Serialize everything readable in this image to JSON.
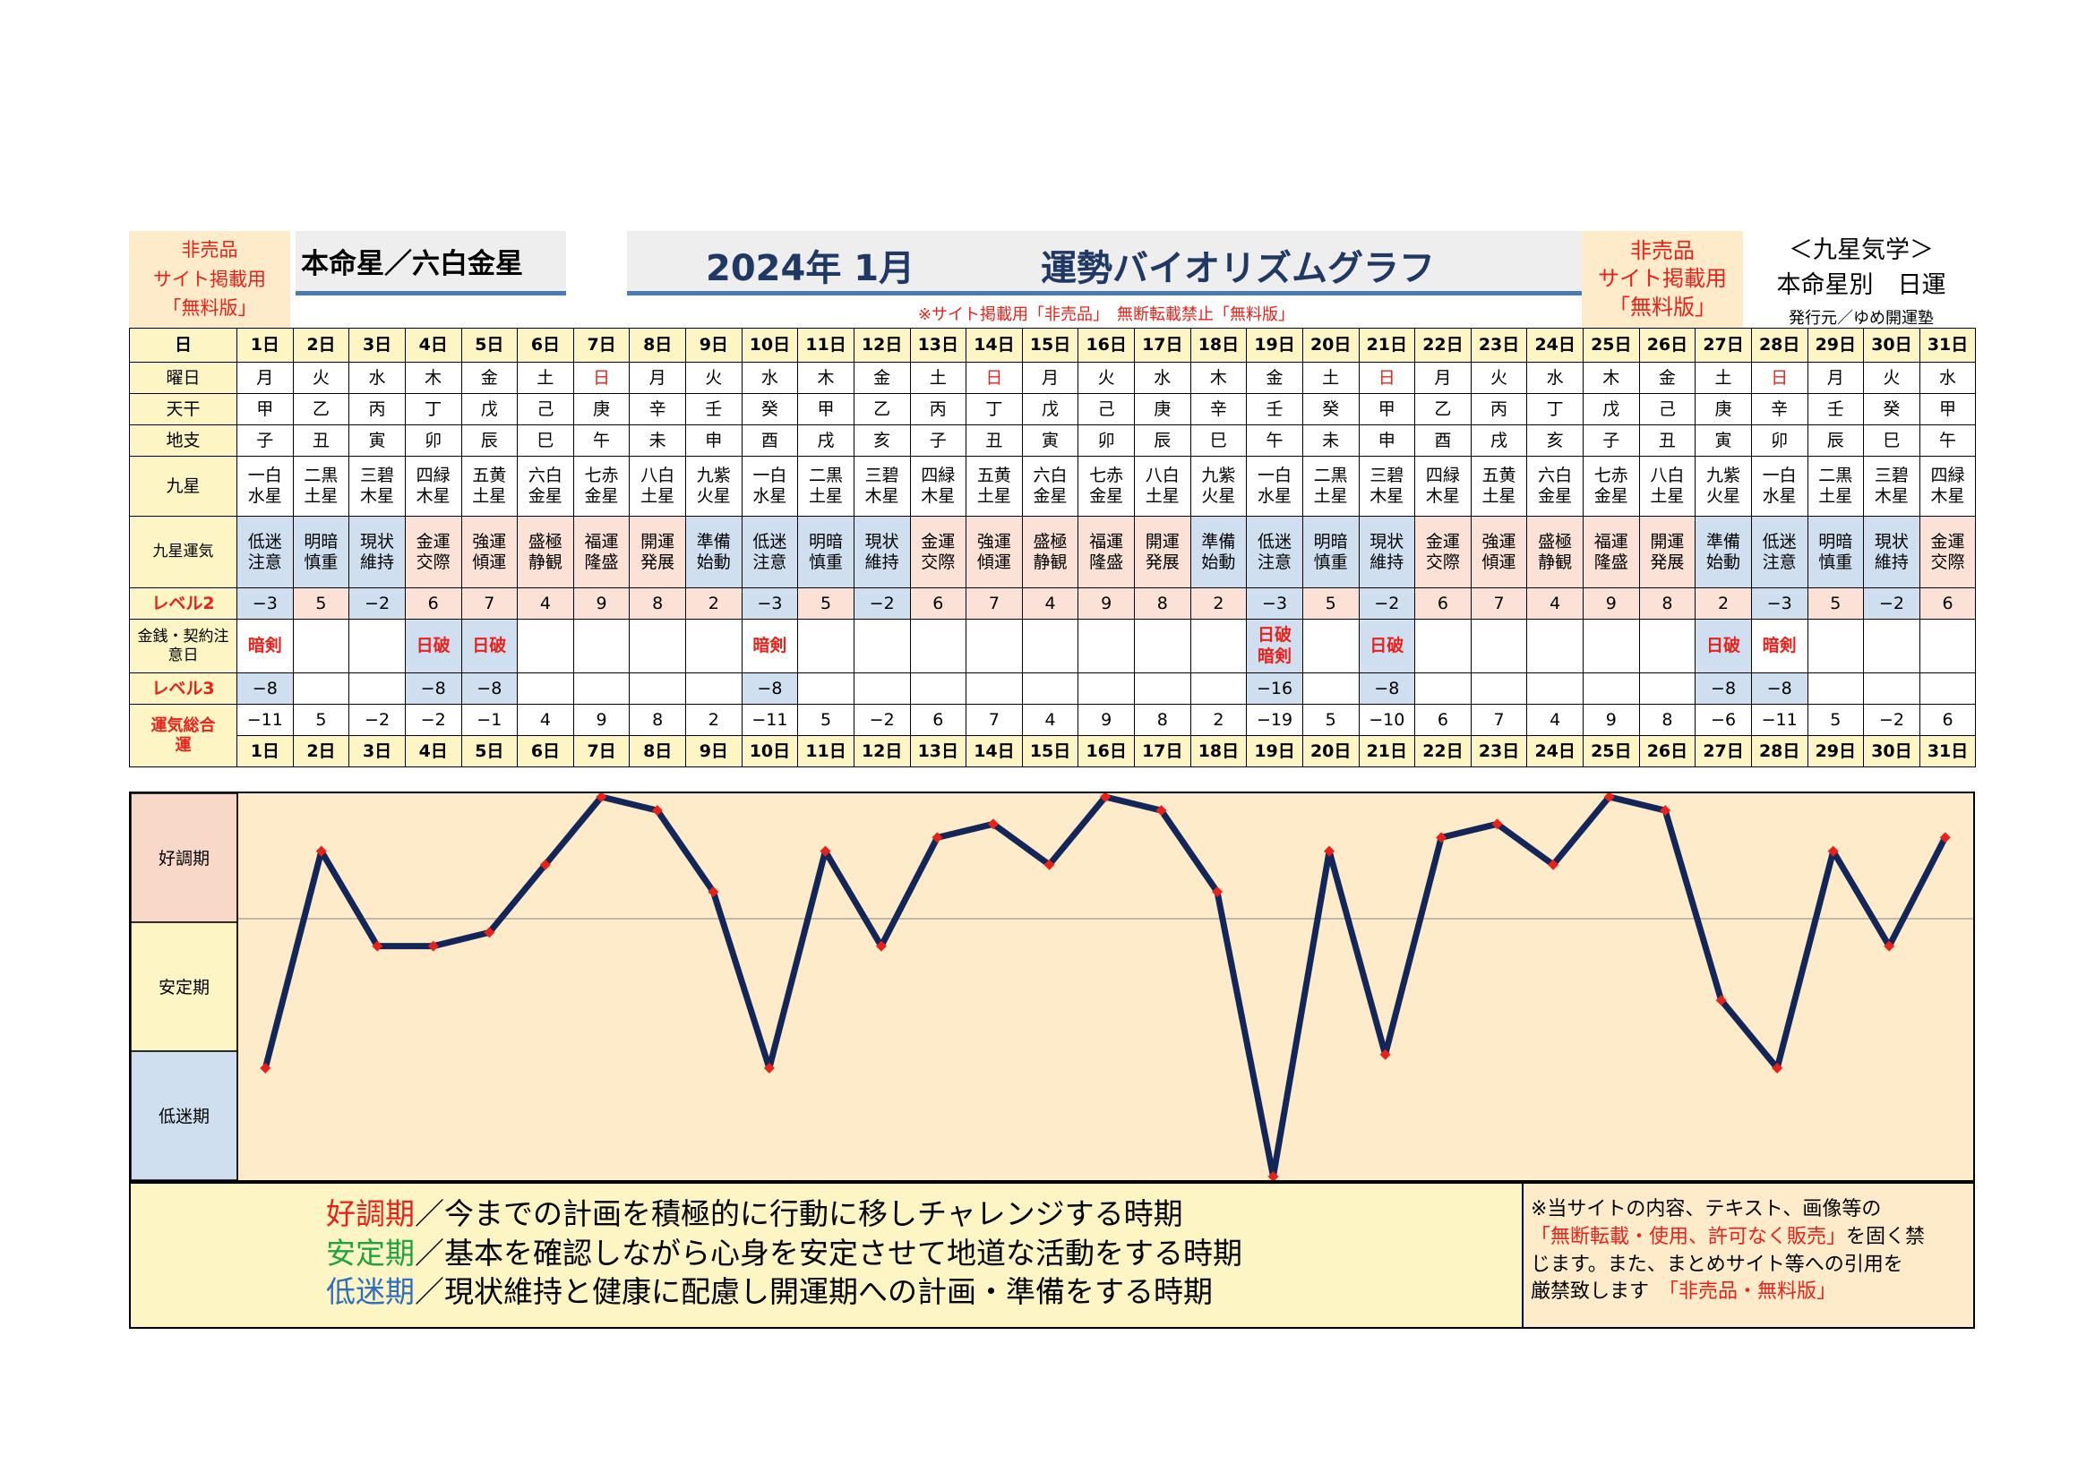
{
  "header": {
    "left_notice": [
      "非売品",
      "サイト掲載用",
      "「無料版」"
    ],
    "honmeisei": "本命星／六白金星",
    "year_month": "2024年 1月",
    "title": "運勢バイオリズムグラフ",
    "right_notice": [
      "非売品",
      "サイト掲載用",
      "「無料版」"
    ],
    "kyusei_title": "＜九星気学＞",
    "kyusei_sub": "本命星別　日運",
    "publisher": "発行元／ゆめ開運塾",
    "banner": "※サイト掲載用「非売品」　無断転載禁止「無料版」"
  },
  "row_labels": {
    "day": "日",
    "weekday": "曜日",
    "tenkan": "天干",
    "chishi": "地支",
    "kyusei": "九星",
    "unki": "九星運気",
    "level2": "レベル2",
    "kinsen": "金銭・契約注意日",
    "level3": "レベル3",
    "total": "運気総合運"
  },
  "days": [
    "1日",
    "2日",
    "3日",
    "4日",
    "5日",
    "6日",
    "7日",
    "8日",
    "9日",
    "10日",
    "11日",
    "12日",
    "13日",
    "14日",
    "15日",
    "16日",
    "17日",
    "18日",
    "19日",
    "20日",
    "21日",
    "22日",
    "23日",
    "24日",
    "25日",
    "26日",
    "27日",
    "28日",
    "29日",
    "30日",
    "31日"
  ],
  "weekdays": [
    "月",
    "火",
    "水",
    "木",
    "金",
    "土",
    "日",
    "月",
    "火",
    "水",
    "木",
    "金",
    "土",
    "日",
    "月",
    "火",
    "水",
    "木",
    "金",
    "土",
    "日",
    "月",
    "火",
    "水",
    "木",
    "金",
    "土",
    "日",
    "月",
    "火",
    "水"
  ],
  "tenkan": [
    "甲",
    "乙",
    "丙",
    "丁",
    "戊",
    "己",
    "庚",
    "辛",
    "壬",
    "癸",
    "甲",
    "乙",
    "丙",
    "丁",
    "戊",
    "己",
    "庚",
    "辛",
    "壬",
    "癸",
    "甲",
    "乙",
    "丙",
    "丁",
    "戊",
    "己",
    "庚",
    "辛",
    "壬",
    "癸",
    "甲"
  ],
  "chishi": [
    "子",
    "丑",
    "寅",
    "卯",
    "辰",
    "巳",
    "午",
    "未",
    "申",
    "酉",
    "戌",
    "亥",
    "子",
    "丑",
    "寅",
    "卯",
    "辰",
    "巳",
    "午",
    "未",
    "申",
    "酉",
    "戌",
    "亥",
    "子",
    "丑",
    "寅",
    "卯",
    "辰",
    "巳",
    "午"
  ],
  "kyusei": [
    [
      "一白",
      "水星"
    ],
    [
      "二黒",
      "土星"
    ],
    [
      "三碧",
      "木星"
    ],
    [
      "四緑",
      "木星"
    ],
    [
      "五黄",
      "土星"
    ],
    [
      "六白",
      "金星"
    ],
    [
      "七赤",
      "金星"
    ],
    [
      "八白",
      "土星"
    ],
    [
      "九紫",
      "火星"
    ],
    [
      "一白",
      "水星"
    ],
    [
      "二黒",
      "土星"
    ],
    [
      "三碧",
      "木星"
    ],
    [
      "四緑",
      "木星"
    ],
    [
      "五黄",
      "土星"
    ],
    [
      "六白",
      "金星"
    ],
    [
      "七赤",
      "金星"
    ],
    [
      "八白",
      "土星"
    ],
    [
      "九紫",
      "火星"
    ],
    [
      "一白",
      "水星"
    ],
    [
      "二黒",
      "土星"
    ],
    [
      "三碧",
      "木星"
    ],
    [
      "四緑",
      "木星"
    ],
    [
      "五黄",
      "土星"
    ],
    [
      "六白",
      "金星"
    ],
    [
      "七赤",
      "金星"
    ],
    [
      "八白",
      "土星"
    ],
    [
      "九紫",
      "火星"
    ],
    [
      "一白",
      "水星"
    ],
    [
      "二黒",
      "土星"
    ],
    [
      "三碧",
      "木星"
    ],
    [
      "四緑",
      "木星"
    ]
  ],
  "unki": [
    [
      "低迷",
      "注意"
    ],
    [
      "明暗",
      "慎重"
    ],
    [
      "現状",
      "維持"
    ],
    [
      "金運",
      "交際"
    ],
    [
      "強運",
      "傾運"
    ],
    [
      "盛極",
      "静観"
    ],
    [
      "福運",
      "隆盛"
    ],
    [
      "開運",
      "発展"
    ],
    [
      "準備",
      "始動"
    ],
    [
      "低迷",
      "注意"
    ],
    [
      "明暗",
      "慎重"
    ],
    [
      "現状",
      "維持"
    ],
    [
      "金運",
      "交際"
    ],
    [
      "強運",
      "傾運"
    ],
    [
      "盛極",
      "静観"
    ],
    [
      "福運",
      "隆盛"
    ],
    [
      "開運",
      "発展"
    ],
    [
      "準備",
      "始動"
    ],
    [
      "低迷",
      "注意"
    ],
    [
      "明暗",
      "慎重"
    ],
    [
      "現状",
      "維持"
    ],
    [
      "金運",
      "交際"
    ],
    [
      "強運",
      "傾運"
    ],
    [
      "盛極",
      "静観"
    ],
    [
      "福運",
      "隆盛"
    ],
    [
      "開運",
      "発展"
    ],
    [
      "準備",
      "始動"
    ],
    [
      "低迷",
      "注意"
    ],
    [
      "明暗",
      "慎重"
    ],
    [
      "現状",
      "維持"
    ],
    [
      "金運",
      "交際"
    ]
  ],
  "level2": [
    "−3",
    "5",
    "−2",
    "6",
    "7",
    "4",
    "9",
    "8",
    "2",
    "−3",
    "5",
    "−2",
    "6",
    "7",
    "4",
    "9",
    "8",
    "2",
    "−3",
    "5",
    "−2",
    "6",
    "7",
    "4",
    "9",
    "8",
    "2",
    "−3",
    "5",
    "−2",
    "6"
  ],
  "kinsen": [
    "暗剣",
    "",
    "",
    "日破",
    "日破",
    "",
    "",
    "",
    "",
    "暗剣",
    "",
    "",
    "",
    "",
    "",
    "",
    "",
    "",
    "日破 暗剣",
    "",
    "日破",
    "",
    "",
    "",
    "",
    "",
    "日破",
    "暗剣",
    "",
    "",
    ""
  ],
  "level3": [
    "−8",
    "",
    "",
    "−8",
    "−8",
    "",
    "",
    "",
    "",
    "−8",
    "",
    "",
    "",
    "",
    "",
    "",
    "",
    "",
    "−16",
    "",
    "−8",
    "",
    "",
    "",
    "",
    "",
    "−8",
    "−8",
    "",
    "",
    ""
  ],
  "total": [
    "−11",
    "5",
    "−2",
    "−2",
    "−1",
    "4",
    "9",
    "8",
    "2",
    "−11",
    "5",
    "−2",
    "6",
    "7",
    "4",
    "9",
    "8",
    "2",
    "−19",
    "5",
    "−10",
    "6",
    "7",
    "4",
    "9",
    "8",
    "−6",
    "−11",
    "5",
    "−2",
    "6"
  ],
  "colors": {
    "line": "#13265a",
    "marker": "#e8221b",
    "good": "#f8d9c9",
    "stable": "#fdf6c4",
    "low": "#cfdff0",
    "plot_bg": "#fdebc9",
    "grid_line": "#999999"
  },
  "chart_data": {
    "type": "line",
    "x": [
      "1日",
      "2日",
      "3日",
      "4日",
      "5日",
      "6日",
      "7日",
      "8日",
      "9日",
      "10日",
      "11日",
      "12日",
      "13日",
      "14日",
      "15日",
      "16日",
      "17日",
      "18日",
      "19日",
      "20日",
      "21日",
      "22日",
      "23日",
      "24日",
      "25日",
      "26日",
      "27日",
      "28日",
      "29日",
      "30日",
      "31日"
    ],
    "values": [
      -11,
      5,
      -2,
      -2,
      -1,
      4,
      9,
      8,
      2,
      -11,
      5,
      -2,
      6,
      7,
      4,
      9,
      8,
      2,
      -19,
      5,
      -10,
      6,
      7,
      4,
      9,
      8,
      -6,
      -11,
      5,
      -2,
      6
    ],
    "ylim": [
      -19,
      9
    ],
    "bands": [
      "好調期",
      "安定期",
      "低迷期"
    ],
    "grid": false
  },
  "legend": {
    "good_term": "好調期",
    "good_text": "／今までの計画を積極的に行動に移しチャレンジする時期",
    "stable_term": "安定期",
    "stable_text": "／基本を確認しながら心身を安定させて地道な活動をする時期",
    "low_term": "低迷期",
    "low_text": "／現状維持と健康に配慮し開運期への計画・準備をする時期"
  },
  "disclaimer": {
    "line1": "※当サイトの内容、テキスト、画像等の",
    "line2_red": "「無断転載・使用、許可なく販売」",
    "line2_tail": "を固く禁",
    "line3": "じます。また、まとめサイト等への引用を",
    "line4": "厳禁致します",
    "line4_red": "「非売品・無料版」"
  }
}
